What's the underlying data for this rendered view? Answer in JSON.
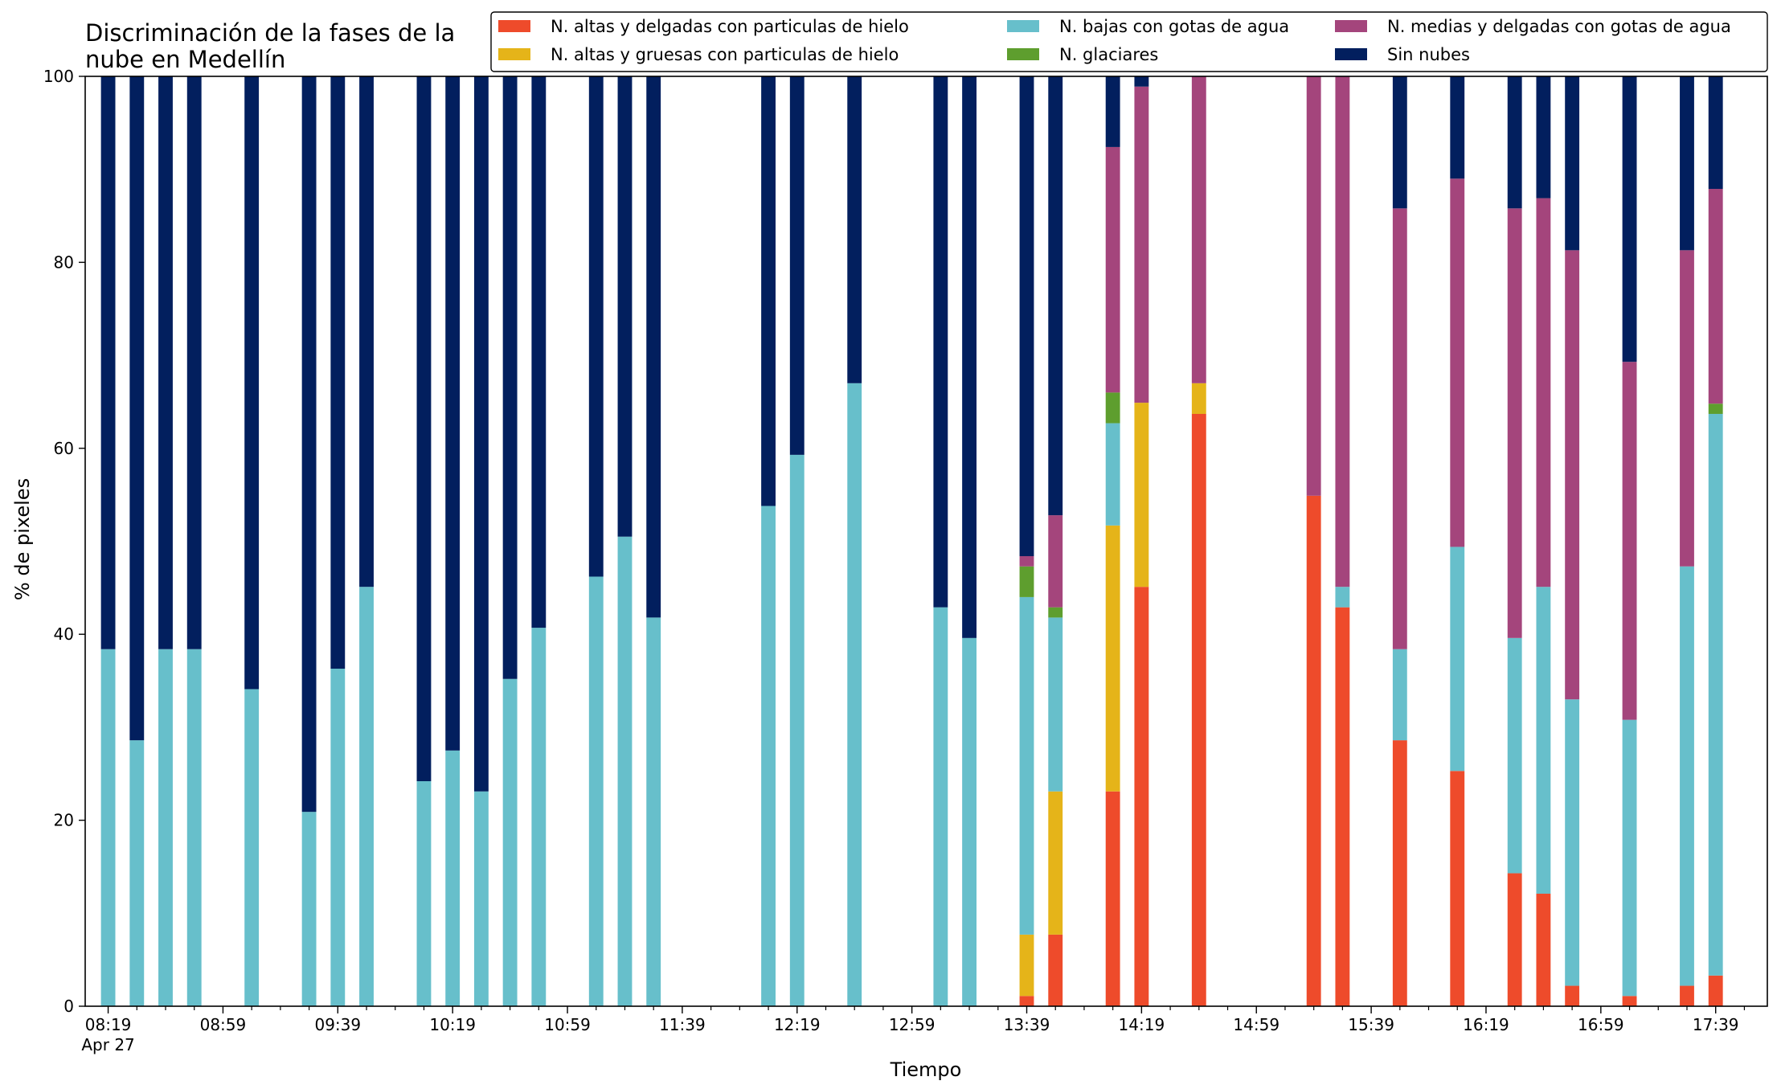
{
  "chart_data": {
    "type": "bar",
    "stacked": true,
    "title_lines": [
      "Discriminación de la fases de la",
      "nube en Medellín"
    ],
    "xlabel": "Tiempo",
    "ylabel": "% de pixeles",
    "ylim": [
      0,
      100
    ],
    "yticks": [
      0,
      20,
      40,
      60,
      80,
      100
    ],
    "x_range_minutes": [
      -8,
      578
    ],
    "x_major_ticks": [
      {
        "minute": 0,
        "label": "08:19",
        "sublabel": "Apr 27"
      },
      {
        "minute": 40,
        "label": "08:59",
        "sublabel": ""
      },
      {
        "minute": 80,
        "label": "09:39",
        "sublabel": ""
      },
      {
        "minute": 120,
        "label": "10:19",
        "sublabel": ""
      },
      {
        "minute": 160,
        "label": "10:59",
        "sublabel": ""
      },
      {
        "minute": 200,
        "label": "11:39",
        "sublabel": ""
      },
      {
        "minute": 240,
        "label": "12:19",
        "sublabel": ""
      },
      {
        "minute": 280,
        "label": "12:59",
        "sublabel": ""
      },
      {
        "minute": 320,
        "label": "13:39",
        "sublabel": ""
      },
      {
        "minute": 360,
        "label": "14:19",
        "sublabel": ""
      },
      {
        "minute": 400,
        "label": "14:59",
        "sublabel": ""
      },
      {
        "minute": 440,
        "label": "15:39",
        "sublabel": ""
      },
      {
        "minute": 480,
        "label": "16:19",
        "sublabel": ""
      },
      {
        "minute": 520,
        "label": "16:59",
        "sublabel": ""
      },
      {
        "minute": 560,
        "label": "17:39",
        "sublabel": ""
      }
    ],
    "x_minor_tick_step": 10,
    "bar_width_minutes": 5,
    "grid": false,
    "legend_position": "top-right",
    "legend_columns": 3,
    "series": [
      {
        "name": "N. altas y delgadas con particulas de hielo",
        "color": "#EE4B2B"
      },
      {
        "name": "N. altas y gruesas con particulas de hielo",
        "color": "#E5B419"
      },
      {
        "name": "N. bajas con gotas de agua",
        "color": "#67BFCB"
      },
      {
        "name": "N. glaciares",
        "color": "#5E9E2E"
      },
      {
        "name": "N. medias y delgadas con gotas de agua",
        "color": "#A4457C"
      },
      {
        "name": "Sin nubes",
        "color": "#021F5E"
      }
    ],
    "bars": [
      {
        "time": "08:19",
        "values": [
          0,
          0,
          38.4,
          0,
          0,
          61.6
        ]
      },
      {
        "time": "08:29",
        "values": [
          0,
          0,
          28.6,
          0,
          0,
          71.4
        ]
      },
      {
        "time": "08:39",
        "values": [
          0,
          0,
          38.4,
          0,
          0,
          61.6
        ]
      },
      {
        "time": "08:49",
        "values": [
          0,
          0,
          38.4,
          0,
          0,
          61.6
        ]
      },
      {
        "time": "09:09",
        "values": [
          0,
          0,
          34.1,
          0,
          0,
          65.9
        ]
      },
      {
        "time": "09:29",
        "values": [
          0,
          0,
          20.9,
          0,
          0,
          79.1
        ]
      },
      {
        "time": "09:39",
        "values": [
          0,
          0,
          36.3,
          0,
          0,
          63.7
        ]
      },
      {
        "time": "09:49",
        "values": [
          0,
          0,
          45.1,
          0,
          0,
          54.9
        ]
      },
      {
        "time": "10:09",
        "values": [
          0,
          0,
          24.2,
          0,
          0,
          75.8
        ]
      },
      {
        "time": "10:19",
        "values": [
          0,
          0,
          27.5,
          0,
          0,
          72.5
        ]
      },
      {
        "time": "10:29",
        "values": [
          0,
          0,
          23.1,
          0,
          0,
          76.9
        ]
      },
      {
        "time": "10:39",
        "values": [
          0,
          0,
          35.2,
          0,
          0,
          64.8
        ]
      },
      {
        "time": "10:49",
        "values": [
          0,
          0,
          40.7,
          0,
          0,
          59.3
        ]
      },
      {
        "time": "11:09",
        "values": [
          0,
          0,
          46.2,
          0,
          0,
          53.8
        ]
      },
      {
        "time": "11:19",
        "values": [
          0,
          0,
          50.5,
          0,
          0,
          49.5
        ]
      },
      {
        "time": "11:29",
        "values": [
          0,
          0,
          41.8,
          0,
          0,
          58.2
        ]
      },
      {
        "time": "12:09",
        "values": [
          0,
          0,
          53.8,
          0,
          0,
          46.2
        ]
      },
      {
        "time": "12:19",
        "values": [
          0,
          0,
          59.3,
          0,
          0,
          40.7
        ]
      },
      {
        "time": "12:39",
        "values": [
          0,
          0,
          67.0,
          0,
          0,
          33.0
        ]
      },
      {
        "time": "13:09",
        "values": [
          0,
          0,
          42.9,
          0,
          0,
          57.1
        ]
      },
      {
        "time": "13:19",
        "values": [
          0,
          0,
          39.6,
          0,
          0,
          60.4
        ]
      },
      {
        "time": "13:39",
        "values": [
          1.1,
          6.6,
          36.3,
          3.3,
          1.1,
          51.6
        ]
      },
      {
        "time": "13:49",
        "values": [
          7.7,
          15.4,
          18.7,
          1.1,
          9.9,
          47.2
        ]
      },
      {
        "time": "14:09",
        "values": [
          23.1,
          28.6,
          11.0,
          3.3,
          26.4,
          7.6
        ]
      },
      {
        "time": "14:19",
        "values": [
          45.1,
          19.8,
          0,
          0,
          34.0,
          1.1
        ]
      },
      {
        "time": "14:39",
        "values": [
          63.7,
          3.3,
          0,
          0,
          33.0,
          0
        ]
      },
      {
        "time": "15:19",
        "values": [
          54.9,
          0,
          0,
          0,
          45.1,
          0
        ]
      },
      {
        "time": "15:29",
        "values": [
          42.9,
          0,
          2.2,
          0,
          54.9,
          0
        ]
      },
      {
        "time": "15:49",
        "values": [
          28.6,
          0,
          9.8,
          0,
          47.4,
          14.2
        ]
      },
      {
        "time": "16:09",
        "values": [
          25.3,
          0,
          24.1,
          0,
          39.6,
          11.0
        ]
      },
      {
        "time": "16:29",
        "values": [
          14.3,
          0,
          25.3,
          0,
          46.2,
          14.2
        ]
      },
      {
        "time": "16:39",
        "values": [
          12.1,
          0,
          33.0,
          0,
          41.8,
          13.1
        ]
      },
      {
        "time": "16:49",
        "values": [
          2.2,
          0,
          30.8,
          0,
          48.3,
          18.7
        ]
      },
      {
        "time": "17:09",
        "values": [
          1.1,
          0,
          29.7,
          0,
          38.5,
          30.7
        ]
      },
      {
        "time": "17:29",
        "values": [
          2.2,
          0,
          45.1,
          0,
          34.0,
          18.7
        ]
      },
      {
        "time": "17:39",
        "values": [
          3.3,
          0,
          60.4,
          1.1,
          23.1,
          12.1
        ]
      }
    ]
  }
}
